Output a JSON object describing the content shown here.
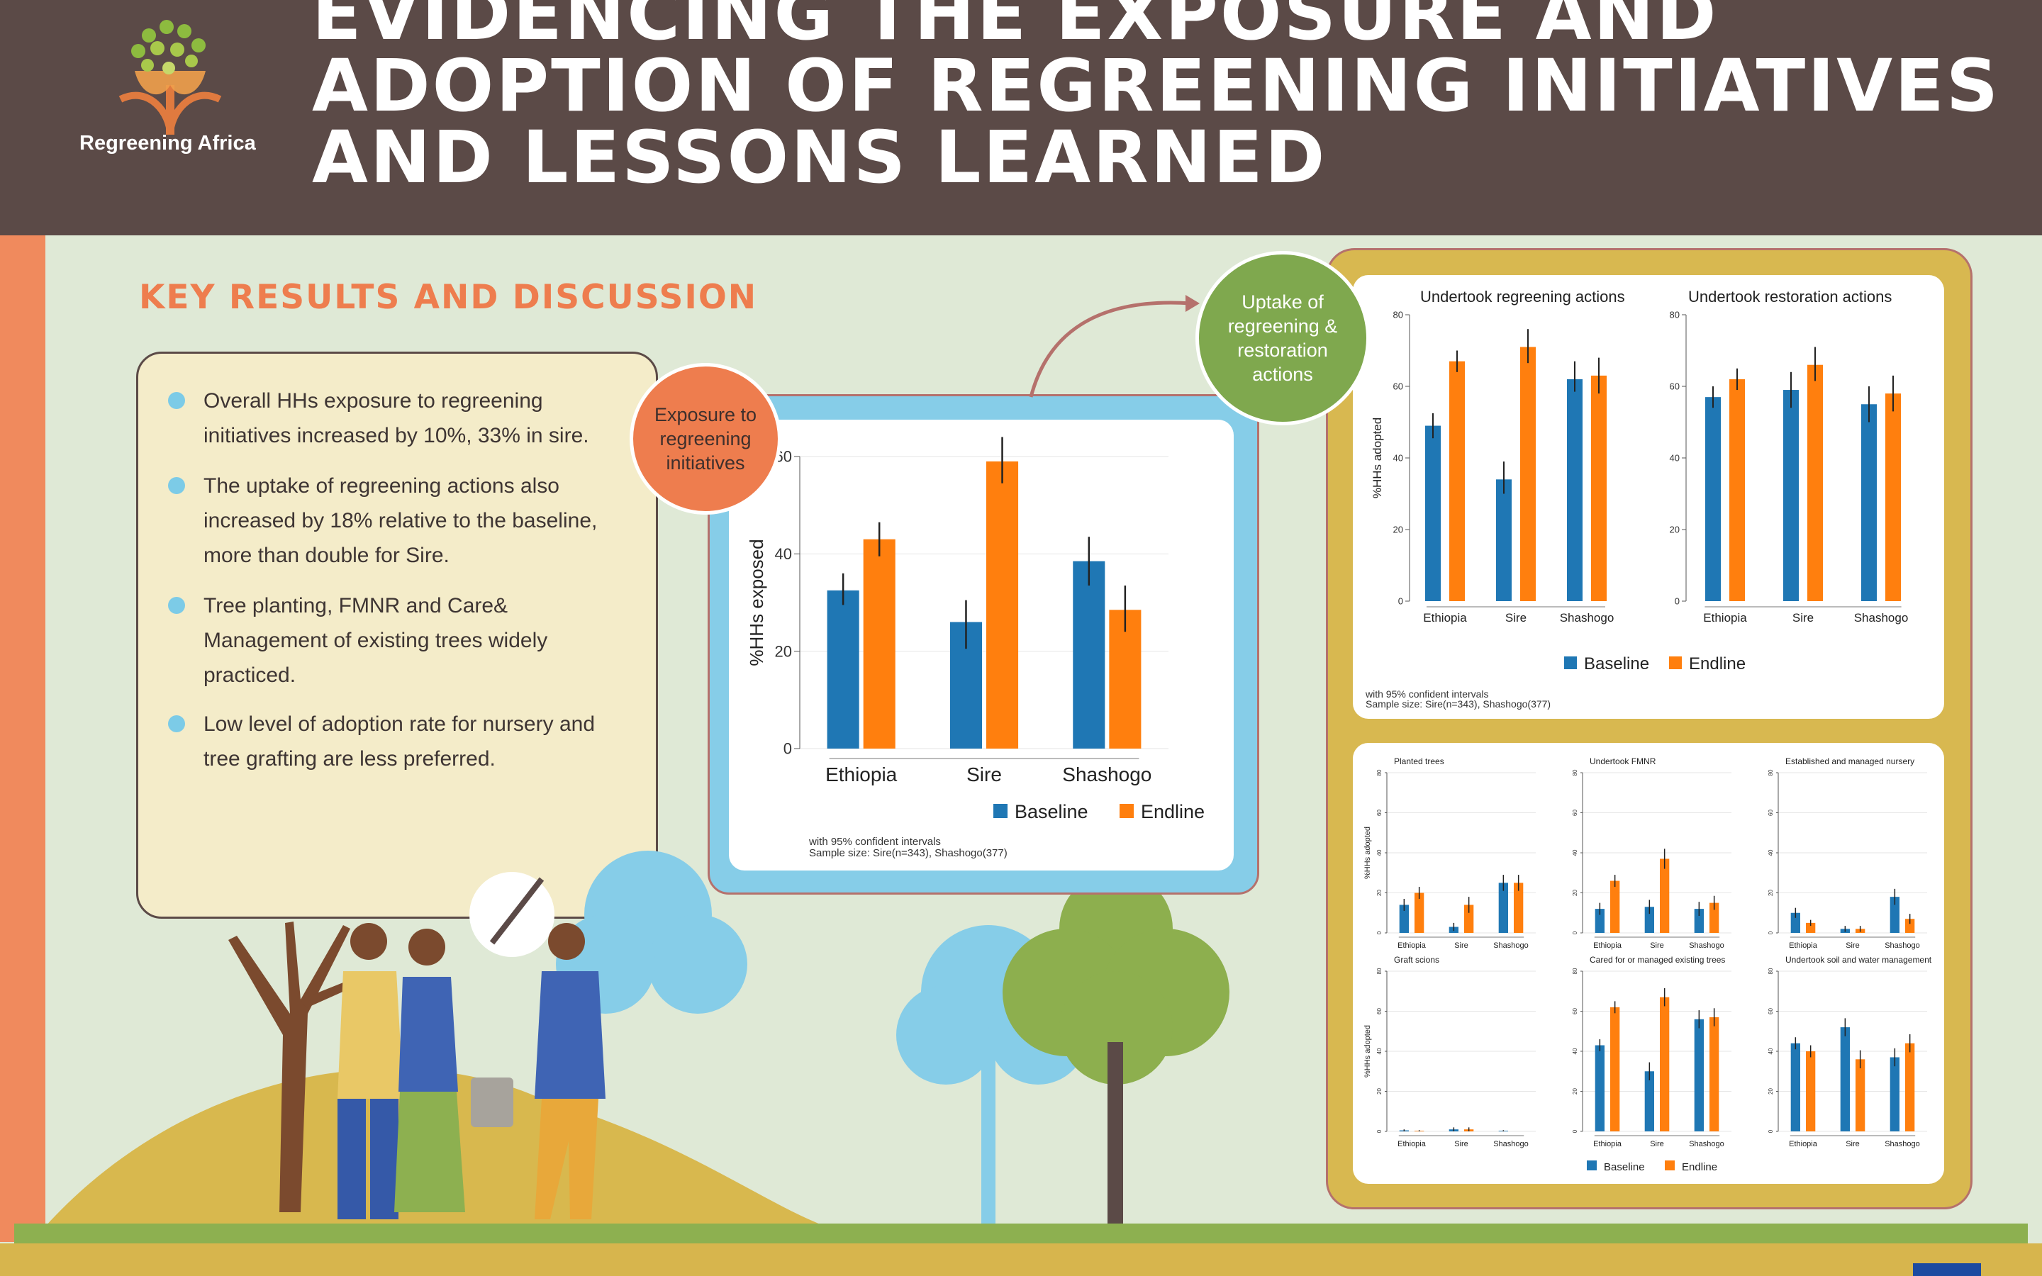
{
  "header": {
    "title_lines": [
      "EVIDENCING THE EXPOSURE AND",
      "ADOPTION OF REGREENING INITIATIVES",
      "AND LESSONS LEARNED"
    ],
    "logo_text": "Regreening Africa"
  },
  "section_heading": "KEY RESULTS AND DISCUSSION",
  "bullets": [
    "Overall HHs exposure to regreening initiatives increased by 10%, 33% in sire.",
    "The uptake of regreening actions also increased by 18% relative to the baseline, more than double for Sire.",
    "Tree planting, FMNR and Care& Management of existing trees widely practiced.",
    "Low level of adoption rate for nursery and tree grafting are less preferred."
  ],
  "callouts": {
    "exposure": "Exposure to regreening initiatives",
    "uptake": "Uptake of regreening & restoration actions"
  },
  "colors": {
    "baseline": "#1f77b4",
    "endline": "#ff7f0e",
    "header_bg": "#5b4a47",
    "accent_orange": "#ee7d4e",
    "accent_green": "#7fa84e"
  },
  "chart_data": [
    {
      "id": "main",
      "type": "bar",
      "title": "",
      "ylabel": "%HHs exposed",
      "ylim": [
        0,
        60
      ],
      "yticks": [
        0,
        20,
        40,
        60
      ],
      "categories": [
        "Ethiopia",
        "Sire",
        "Shashogo"
      ],
      "series": [
        {
          "name": "Baseline",
          "values": [
            32.5,
            26,
            38.5
          ],
          "ci": [
            [
              29.5,
              36
            ],
            [
              20.5,
              30.5
            ],
            [
              33.5,
              43.5
            ]
          ]
        },
        {
          "name": "Endline",
          "values": [
            43,
            59,
            28.5
          ],
          "ci": [
            [
              39.5,
              46.5
            ],
            [
              54.5,
              64
            ],
            [
              24,
              33.5
            ]
          ]
        }
      ],
      "note_lines": [
        "with 95% confident intervals",
        "Sample size: Sire(n=343), Shashogo(377)"
      ]
    },
    {
      "id": "regreening",
      "type": "bar",
      "title": "Undertook regreening actions",
      "ylabel": "%HHs adopted",
      "ylim": [
        0,
        80
      ],
      "yticks": [
        0,
        20,
        40,
        60,
        80
      ],
      "categories": [
        "Ethiopia",
        "Sire",
        "Shashogo"
      ],
      "series": [
        {
          "name": "Baseline",
          "values": [
            49,
            34,
            62
          ],
          "ci": [
            [
              45.5,
              52.5
            ],
            [
              30,
              39
            ],
            [
              58.5,
              67
            ]
          ]
        },
        {
          "name": "Endline",
          "values": [
            67,
            71,
            63
          ],
          "ci": [
            [
              64,
              70
            ],
            [
              66.5,
              76
            ],
            [
              58,
              68
            ]
          ]
        }
      ]
    },
    {
      "id": "restoration",
      "type": "bar",
      "title": "Undertook restoration actions",
      "ylabel": "",
      "ylim": [
        0,
        80
      ],
      "yticks": [
        0,
        20,
        40,
        60,
        80
      ],
      "categories": [
        "Ethiopia",
        "Sire",
        "Shashogo"
      ],
      "series": [
        {
          "name": "Baseline",
          "values": [
            57,
            59,
            55
          ],
          "ci": [
            [
              54,
              60
            ],
            [
              54,
              64
            ],
            [
              50,
              60
            ]
          ]
        },
        {
          "name": "Endline",
          "values": [
            62,
            66,
            58
          ],
          "ci": [
            [
              59,
              65
            ],
            [
              61.5,
              71
            ],
            [
              53,
              63
            ]
          ]
        }
      ]
    },
    {
      "id": "small-planted",
      "type": "bar",
      "title": "Planted trees",
      "ylabel": "%HHs adopted",
      "ylim": [
        0,
        80
      ],
      "yticks": [
        0,
        20,
        40,
        60,
        80
      ],
      "categories": [
        "Ethiopia",
        "Sire",
        "Shashogo"
      ],
      "series": [
        {
          "name": "Baseline",
          "values": [
            14,
            3,
            25
          ],
          "ci": [
            [
              11,
              17
            ],
            [
              1,
              5
            ],
            [
              21,
              29
            ]
          ]
        },
        {
          "name": "Endline",
          "values": [
            20,
            14,
            25
          ],
          "ci": [
            [
              17,
              23
            ],
            [
              10,
              18
            ],
            [
              21,
              29
            ]
          ]
        }
      ]
    },
    {
      "id": "small-fmnr",
      "type": "bar",
      "title": "Undertook FMNR",
      "ylabel": "",
      "ylim": [
        0,
        80
      ],
      "yticks": [
        0,
        20,
        40,
        60,
        80
      ],
      "categories": [
        "Ethiopia",
        "Sire",
        "Shashogo"
      ],
      "series": [
        {
          "name": "Baseline",
          "values": [
            12,
            13,
            12
          ],
          "ci": [
            [
              9,
              15
            ],
            [
              9.5,
              16.5
            ],
            [
              8.5,
              15.5
            ]
          ]
        },
        {
          "name": "Endline",
          "values": [
            26,
            37,
            15
          ],
          "ci": [
            [
              23,
              29
            ],
            [
              32,
              42
            ],
            [
              11.5,
              18.5
            ]
          ]
        }
      ]
    },
    {
      "id": "small-nursery",
      "type": "bar",
      "title": "Established and managed nursery",
      "ylabel": "",
      "ylim": [
        0,
        80
      ],
      "yticks": [
        0,
        20,
        40,
        60,
        80
      ],
      "categories": [
        "Ethiopia",
        "Sire",
        "Shashogo"
      ],
      "series": [
        {
          "name": "Baseline",
          "values": [
            10,
            2,
            18
          ],
          "ci": [
            [
              7.5,
              12.5
            ],
            [
              0.5,
              3.5
            ],
            [
              14,
              22
            ]
          ]
        },
        {
          "name": "Endline",
          "values": [
            5,
            2,
            7
          ],
          "ci": [
            [
              3.5,
              6.5
            ],
            [
              0.5,
              3.5
            ],
            [
              4.5,
              9.5
            ]
          ]
        }
      ]
    },
    {
      "id": "small-graft",
      "type": "bar",
      "title": "Graft scions",
      "ylabel": "%HHs adopted",
      "ylim": [
        0,
        80
      ],
      "yticks": [
        0,
        20,
        40,
        60,
        80
      ],
      "categories": [
        "Ethiopia",
        "Sire",
        "Shashogo"
      ],
      "series": [
        {
          "name": "Baseline",
          "values": [
            0.5,
            1,
            0.3
          ],
          "ci": [
            [
              0,
              1
            ],
            [
              0,
              2
            ],
            [
              0,
              0.6
            ]
          ]
        },
        {
          "name": "Endline",
          "values": [
            0.3,
            1,
            0
          ],
          "ci": [
            [
              0,
              0.6
            ],
            [
              0,
              2
            ],
            [
              0,
              0
            ]
          ]
        }
      ]
    },
    {
      "id": "small-cared",
      "type": "bar",
      "title": "Cared for or managed existing trees",
      "ylabel": "",
      "ylim": [
        0,
        80
      ],
      "yticks": [
        0,
        20,
        40,
        60,
        80
      ],
      "categories": [
        "Ethiopia",
        "Sire",
        "Shashogo"
      ],
      "series": [
        {
          "name": "Baseline",
          "values": [
            43,
            30,
            56
          ],
          "ci": [
            [
              40,
              46
            ],
            [
              25.5,
              34.5
            ],
            [
              51.5,
              60.5
            ]
          ]
        },
        {
          "name": "Endline",
          "values": [
            62,
            67,
            57
          ],
          "ci": [
            [
              59,
              65
            ],
            [
              62.5,
              71.5
            ],
            [
              52.5,
              61.5
            ]
          ]
        }
      ]
    },
    {
      "id": "small-soil",
      "type": "bar",
      "title": "Undertook soil and water management",
      "ylabel": "",
      "ylim": [
        0,
        80
      ],
      "yticks": [
        0,
        20,
        40,
        60,
        80
      ],
      "categories": [
        "Ethiopia",
        "Sire",
        "Shashogo"
      ],
      "series": [
        {
          "name": "Baseline",
          "values": [
            44,
            52,
            37
          ],
          "ci": [
            [
              41,
              47
            ],
            [
              47.5,
              56.5
            ],
            [
              32.5,
              41.5
            ]
          ]
        },
        {
          "name": "Endline",
          "values": [
            40,
            36,
            44
          ],
          "ci": [
            [
              37,
              43
            ],
            [
              31.5,
              40.5
            ],
            [
              39.5,
              48.5
            ]
          ]
        }
      ]
    }
  ],
  "right_top_note_lines": [
    "with 95% confident intervals",
    "Sample size: Sire(n=343), Shashogo(377)"
  ],
  "legend": {
    "baseline": "Baseline",
    "endline": "Endline"
  }
}
